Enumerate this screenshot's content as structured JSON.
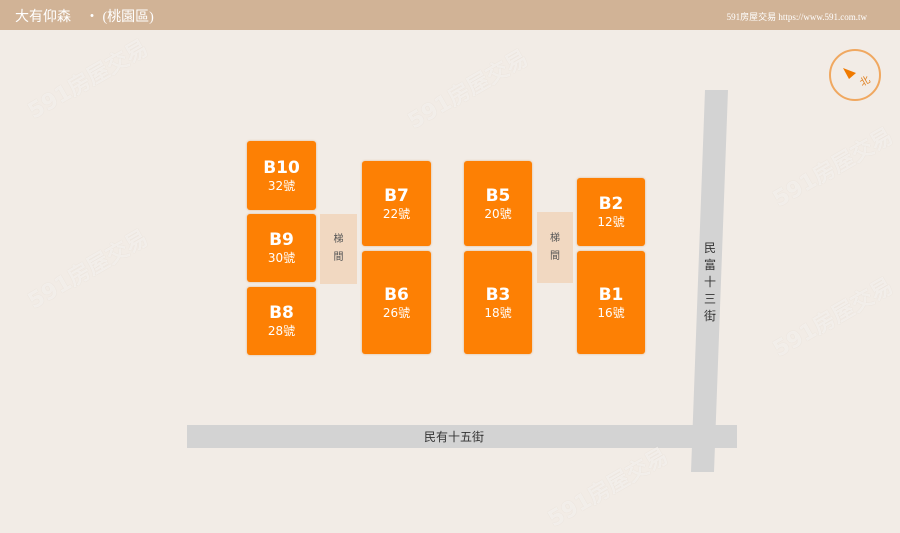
{
  "header": {
    "title": "大有仰森　‧ (桃園區)",
    "brand": "591房屋交易 https://www.591.com.tw"
  },
  "units": [
    {
      "code": "B10",
      "num": "32號"
    },
    {
      "code": "B9",
      "num": "30號"
    },
    {
      "code": "B8",
      "num": "28號"
    },
    {
      "code": "B7",
      "num": "22號"
    },
    {
      "code": "B6",
      "num": "26號"
    },
    {
      "code": "B5",
      "num": "20號"
    },
    {
      "code": "B3",
      "num": "18號"
    },
    {
      "code": "B2",
      "num": "12號"
    },
    {
      "code": "B1",
      "num": "16號"
    }
  ],
  "stairs": [
    {
      "l1": "梯",
      "l2": "間"
    },
    {
      "l1": "梯",
      "l2": "間"
    }
  ],
  "roads": {
    "horizontal": "民有十五街",
    "vertical": [
      "民",
      "富",
      "十",
      "三",
      "街"
    ]
  },
  "compass": {
    "label": "北",
    "icon": "north-arrow-icon"
  },
  "colors": {
    "unit": "#fd8004",
    "header": "#d1b396",
    "road": "#d3d3d3",
    "stair": "#f1d8c1"
  },
  "watermark": "591房屋交易"
}
